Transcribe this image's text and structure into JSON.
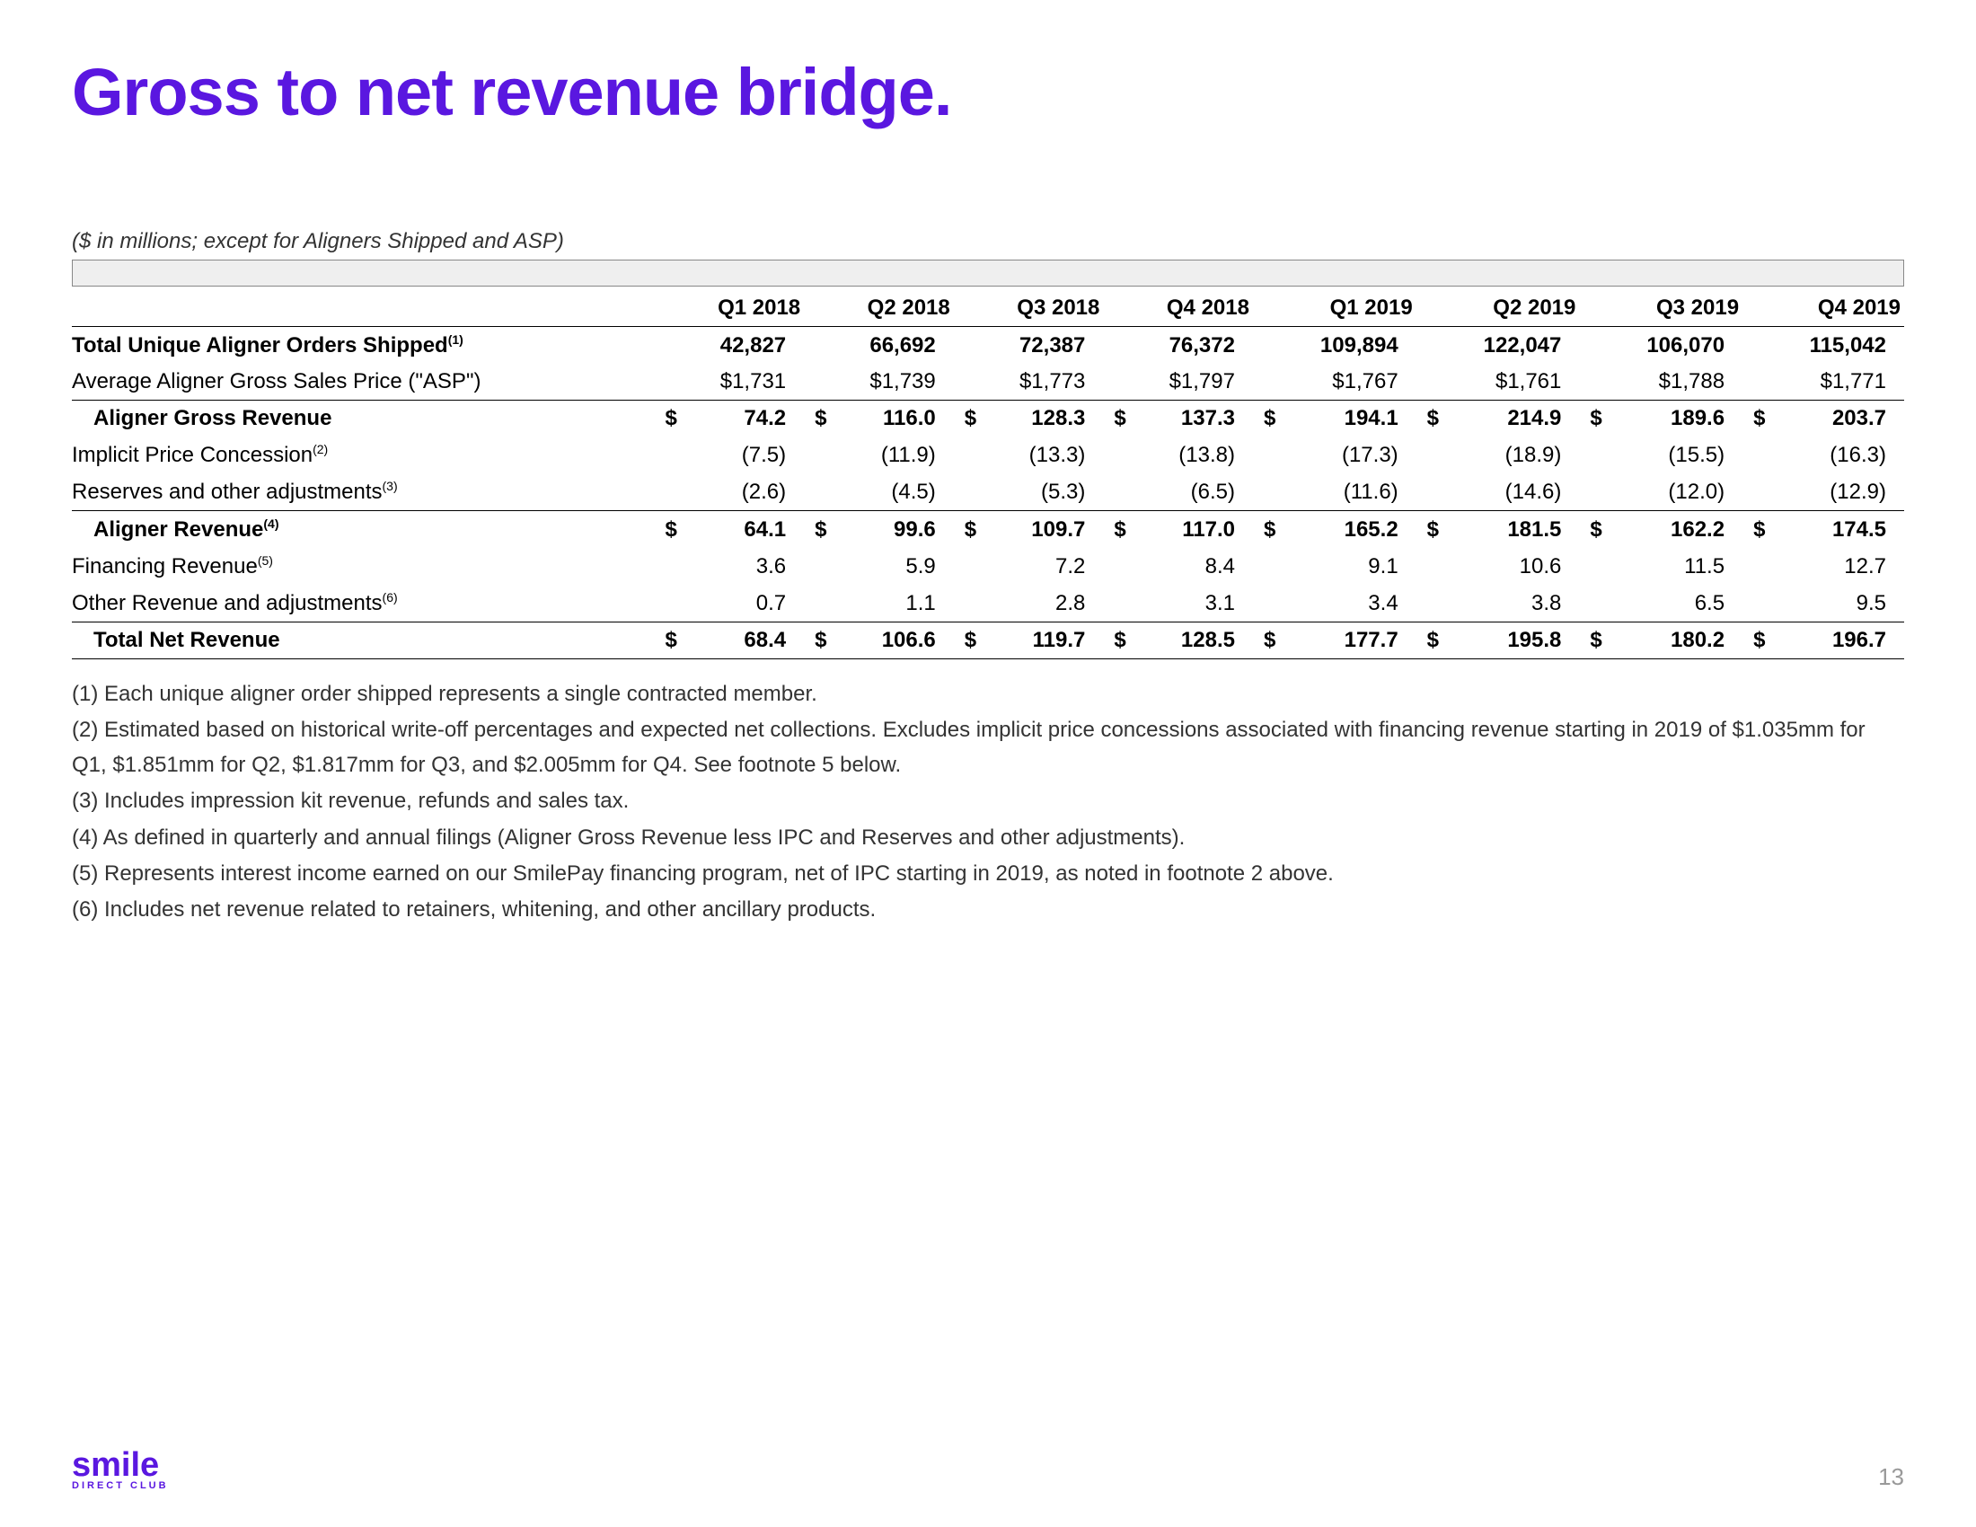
{
  "title": "Gross to net revenue bridge.",
  "subnote": "($ in millions; except for Aligners Shipped and ASP)",
  "title_color": "#5a17e0",
  "columns": [
    "Q1 2018",
    "Q2 2018",
    "Q3 2018",
    "Q4 2018",
    "Q1 2019",
    "Q2 2019",
    "Q3 2019",
    "Q4 2019"
  ],
  "rows": [
    {
      "label": "Total Unique Aligner Orders Shipped",
      "sup": "(1)",
      "bold": true,
      "dollar": false,
      "values": [
        "42,827",
        "66,692",
        "72,387",
        "76,372",
        "109,894",
        "122,047",
        "106,070",
        "115,042"
      ]
    },
    {
      "label": "Average Aligner Gross Sales Price (\"ASP\")",
      "sup": "",
      "bold": false,
      "dollar": false,
      "values": [
        "$1,731",
        "$1,739",
        "$1,773",
        "$1,797",
        "$1,767",
        "$1,761",
        "$1,788",
        "$1,771"
      ]
    },
    {
      "label": "Aligner Gross Revenue",
      "sup": "",
      "bold": true,
      "dollar": true,
      "toprule": true,
      "indent": true,
      "values": [
        "74.2",
        "116.0",
        "128.3",
        "137.3",
        "194.1",
        "214.9",
        "189.6",
        "203.7"
      ]
    },
    {
      "label": "Implicit Price Concession",
      "sup": "(2)",
      "bold": false,
      "dollar": false,
      "values": [
        "(7.5)",
        "(11.9)",
        "(13.3)",
        "(13.8)",
        "(17.3)",
        "(18.9)",
        "(15.5)",
        "(16.3)"
      ]
    },
    {
      "label": "Reserves and other adjustments",
      "sup": "(3)",
      "bold": false,
      "dollar": false,
      "values": [
        "(2.6)",
        "(4.5)",
        "(5.3)",
        "(6.5)",
        "(11.6)",
        "(14.6)",
        "(12.0)",
        "(12.9)"
      ]
    },
    {
      "label": "Aligner Revenue",
      "sup": "(4)",
      "bold": true,
      "dollar": true,
      "toprule": true,
      "indent": true,
      "values": [
        "64.1",
        "99.6",
        "109.7",
        "117.0",
        "165.2",
        "181.5",
        "162.2",
        "174.5"
      ]
    },
    {
      "label": "Financing Revenue",
      "sup": "(5)",
      "bold": false,
      "dollar": false,
      "values": [
        "3.6",
        "5.9",
        "7.2",
        "8.4",
        "9.1",
        "10.6",
        "11.5",
        "12.7"
      ]
    },
    {
      "label": "Other Revenue and adjustments",
      "sup": "(6)",
      "bold": false,
      "dollar": false,
      "values": [
        "0.7",
        "1.1",
        "2.8",
        "3.1",
        "3.4",
        "3.8",
        "6.5",
        "9.5"
      ]
    },
    {
      "label": "Total Net Revenue",
      "sup": "",
      "bold": true,
      "dollar": true,
      "total": true,
      "indent": true,
      "values": [
        "68.4",
        "106.6",
        "119.7",
        "128.5",
        "177.7",
        "195.8",
        "180.2",
        "196.7"
      ]
    }
  ],
  "footnotes": [
    "(1)  Each unique aligner order shipped represents a single contracted member.",
    "(2)  Estimated based on historical write-off percentages and expected net collections. Excludes implicit price concessions associated with financing revenue starting in 2019 of $1.035mm for Q1, $1.851mm for Q2, $1.817mm for Q3, and $2.005mm for Q4. See footnote 5 below.",
    "(3)  Includes impression kit revenue, refunds and sales tax.",
    "(4)  As defined in quarterly and annual filings (Aligner Gross Revenue less IPC and Reserves and other adjustments).",
    "(5)  Represents interest income earned on our SmilePay financing program, net of IPC starting in 2019, as noted in footnote 2 above.",
    "(6)  Includes net revenue related to retainers, whitening, and other ancillary products."
  ],
  "logo": "smile",
  "logo_sub": "DIRECT CLUB",
  "page_number": "13"
}
